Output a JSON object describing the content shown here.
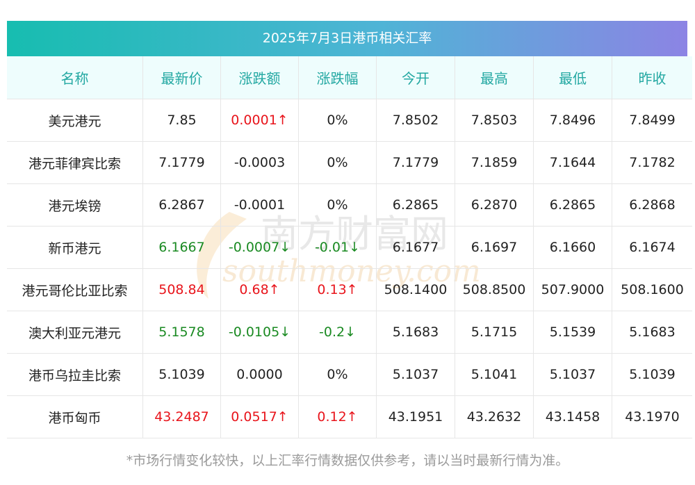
{
  "title": "2025年7月3日港币相关汇率",
  "columns": [
    "名称",
    "最新价",
    "涨跌额",
    "涨跌幅",
    "今开",
    "最高",
    "最低",
    "昨收"
  ],
  "rows": [
    {
      "name": "美元港元",
      "latest": "7.85",
      "change": "0.0001↑",
      "pct": "0%",
      "open": "7.8502",
      "high": "7.8503",
      "low": "7.8496",
      "prev": "7.8499",
      "latest_trend": "flat",
      "change_trend": "up",
      "pct_trend": "flat"
    },
    {
      "name": "港元菲律宾比索",
      "latest": "7.1779",
      "change": "-0.0003",
      "pct": "0%",
      "open": "7.1779",
      "high": "7.1859",
      "low": "7.1644",
      "prev": "7.1782",
      "latest_trend": "flat",
      "change_trend": "flat",
      "pct_trend": "flat"
    },
    {
      "name": "港元埃镑",
      "latest": "6.2867",
      "change": "-0.0001",
      "pct": "0%",
      "open": "6.2865",
      "high": "6.2870",
      "low": "6.2865",
      "prev": "6.2868",
      "latest_trend": "flat",
      "change_trend": "flat",
      "pct_trend": "flat"
    },
    {
      "name": "新币港元",
      "latest": "6.1667",
      "change": "-0.0007↓",
      "pct": "-0.01↓",
      "open": "6.1677",
      "high": "6.1697",
      "low": "6.1660",
      "prev": "6.1674",
      "latest_trend": "down",
      "change_trend": "down",
      "pct_trend": "down"
    },
    {
      "name": "港元哥伦比亚比索",
      "latest": "508.84",
      "change": "0.68↑",
      "pct": "0.13↑",
      "open": "508.1400",
      "high": "508.8500",
      "low": "507.9000",
      "prev": "508.1600",
      "latest_trend": "up",
      "change_trend": "up",
      "pct_trend": "up"
    },
    {
      "name": "澳大利亚元港元",
      "latest": "5.1578",
      "change": "-0.0105↓",
      "pct": "-0.2↓",
      "open": "5.1683",
      "high": "5.1715",
      "low": "5.1539",
      "prev": "5.1683",
      "latest_trend": "down",
      "change_trend": "down",
      "pct_trend": "down"
    },
    {
      "name": "港币乌拉圭比索",
      "latest": "5.1039",
      "change": "0.0000",
      "pct": "0%",
      "open": "5.1037",
      "high": "5.1041",
      "low": "5.1037",
      "prev": "5.1039",
      "latest_trend": "flat",
      "change_trend": "flat",
      "pct_trend": "flat"
    },
    {
      "name": "港币匈币",
      "latest": "43.2487",
      "change": "0.0517↑",
      "pct": "0.12↑",
      "open": "43.1951",
      "high": "43.2632",
      "low": "43.1458",
      "prev": "43.1970",
      "latest_trend": "up",
      "change_trend": "up",
      "pct_trend": "up"
    }
  ],
  "watermark": {
    "cn": "南方财富网",
    "en": "southmoney.com"
  },
  "footer_note": "*市场行情变化较快，以上汇率行情数据仅供参考，请以当时最新行情为准。",
  "colors": {
    "up": "#e8141b",
    "down": "#1a8a22",
    "header_text": "#23a8a2",
    "banner_start": "#17bdb0",
    "banner_end": "#8c84e4"
  }
}
